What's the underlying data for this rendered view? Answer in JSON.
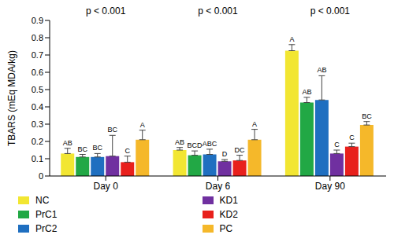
{
  "chart_data": {
    "type": "bar",
    "y_label": "TBARS (mEq MDA/kg)",
    "categories": [
      "Day 0",
      "Day 6",
      "Day 90"
    ],
    "annotations": [
      "p < 0.001",
      "p < 0.001",
      "p < 0.001"
    ],
    "ylim": [
      0,
      0.9
    ],
    "yticks": [
      0,
      0.1,
      0.2,
      0.3,
      0.4,
      0.5,
      0.6,
      0.7,
      0.8,
      0.9
    ],
    "grid": false,
    "legend": "bottom",
    "series": [
      {
        "name": "NC",
        "color": "#f2e632",
        "values": [
          0.13,
          0.15,
          0.725
        ],
        "errors": [
          0.03,
          0.015,
          0.035
        ],
        "letters": [
          "AB",
          "AB",
          "A"
        ]
      },
      {
        "name": "PrC1",
        "color": "#22a845",
        "values": [
          0.11,
          0.12,
          0.425
        ],
        "errors": [
          0.015,
          0.025,
          0.03
        ],
        "letters": [
          "BC",
          "BCD",
          "AB"
        ]
      },
      {
        "name": "PrC2",
        "color": "#1f6fc0",
        "values": [
          0.11,
          0.125,
          0.44
        ],
        "errors": [
          0.02,
          0.03,
          0.14
        ],
        "letters": [
          "BC",
          "ABC",
          "AB"
        ]
      },
      {
        "name": "KD1",
        "color": "#7030a0",
        "values": [
          0.115,
          0.085,
          0.13
        ],
        "errors": [
          0.12,
          0.01,
          0.02
        ],
        "letters": [
          "BC",
          "D",
          "C"
        ]
      },
      {
        "name": "KD2",
        "color": "#e8201c",
        "values": [
          0.08,
          0.09,
          0.17
        ],
        "errors": [
          0.035,
          0.03,
          0.02
        ],
        "letters": [
          "C",
          "DC",
          "C"
        ]
      },
      {
        "name": "PC",
        "color": "#f5b82a",
        "values": [
          0.21,
          0.21,
          0.295
        ],
        "errors": [
          0.055,
          0.06,
          0.02
        ],
        "letters": [
          "A",
          "A",
          "BC"
        ]
      }
    ]
  }
}
